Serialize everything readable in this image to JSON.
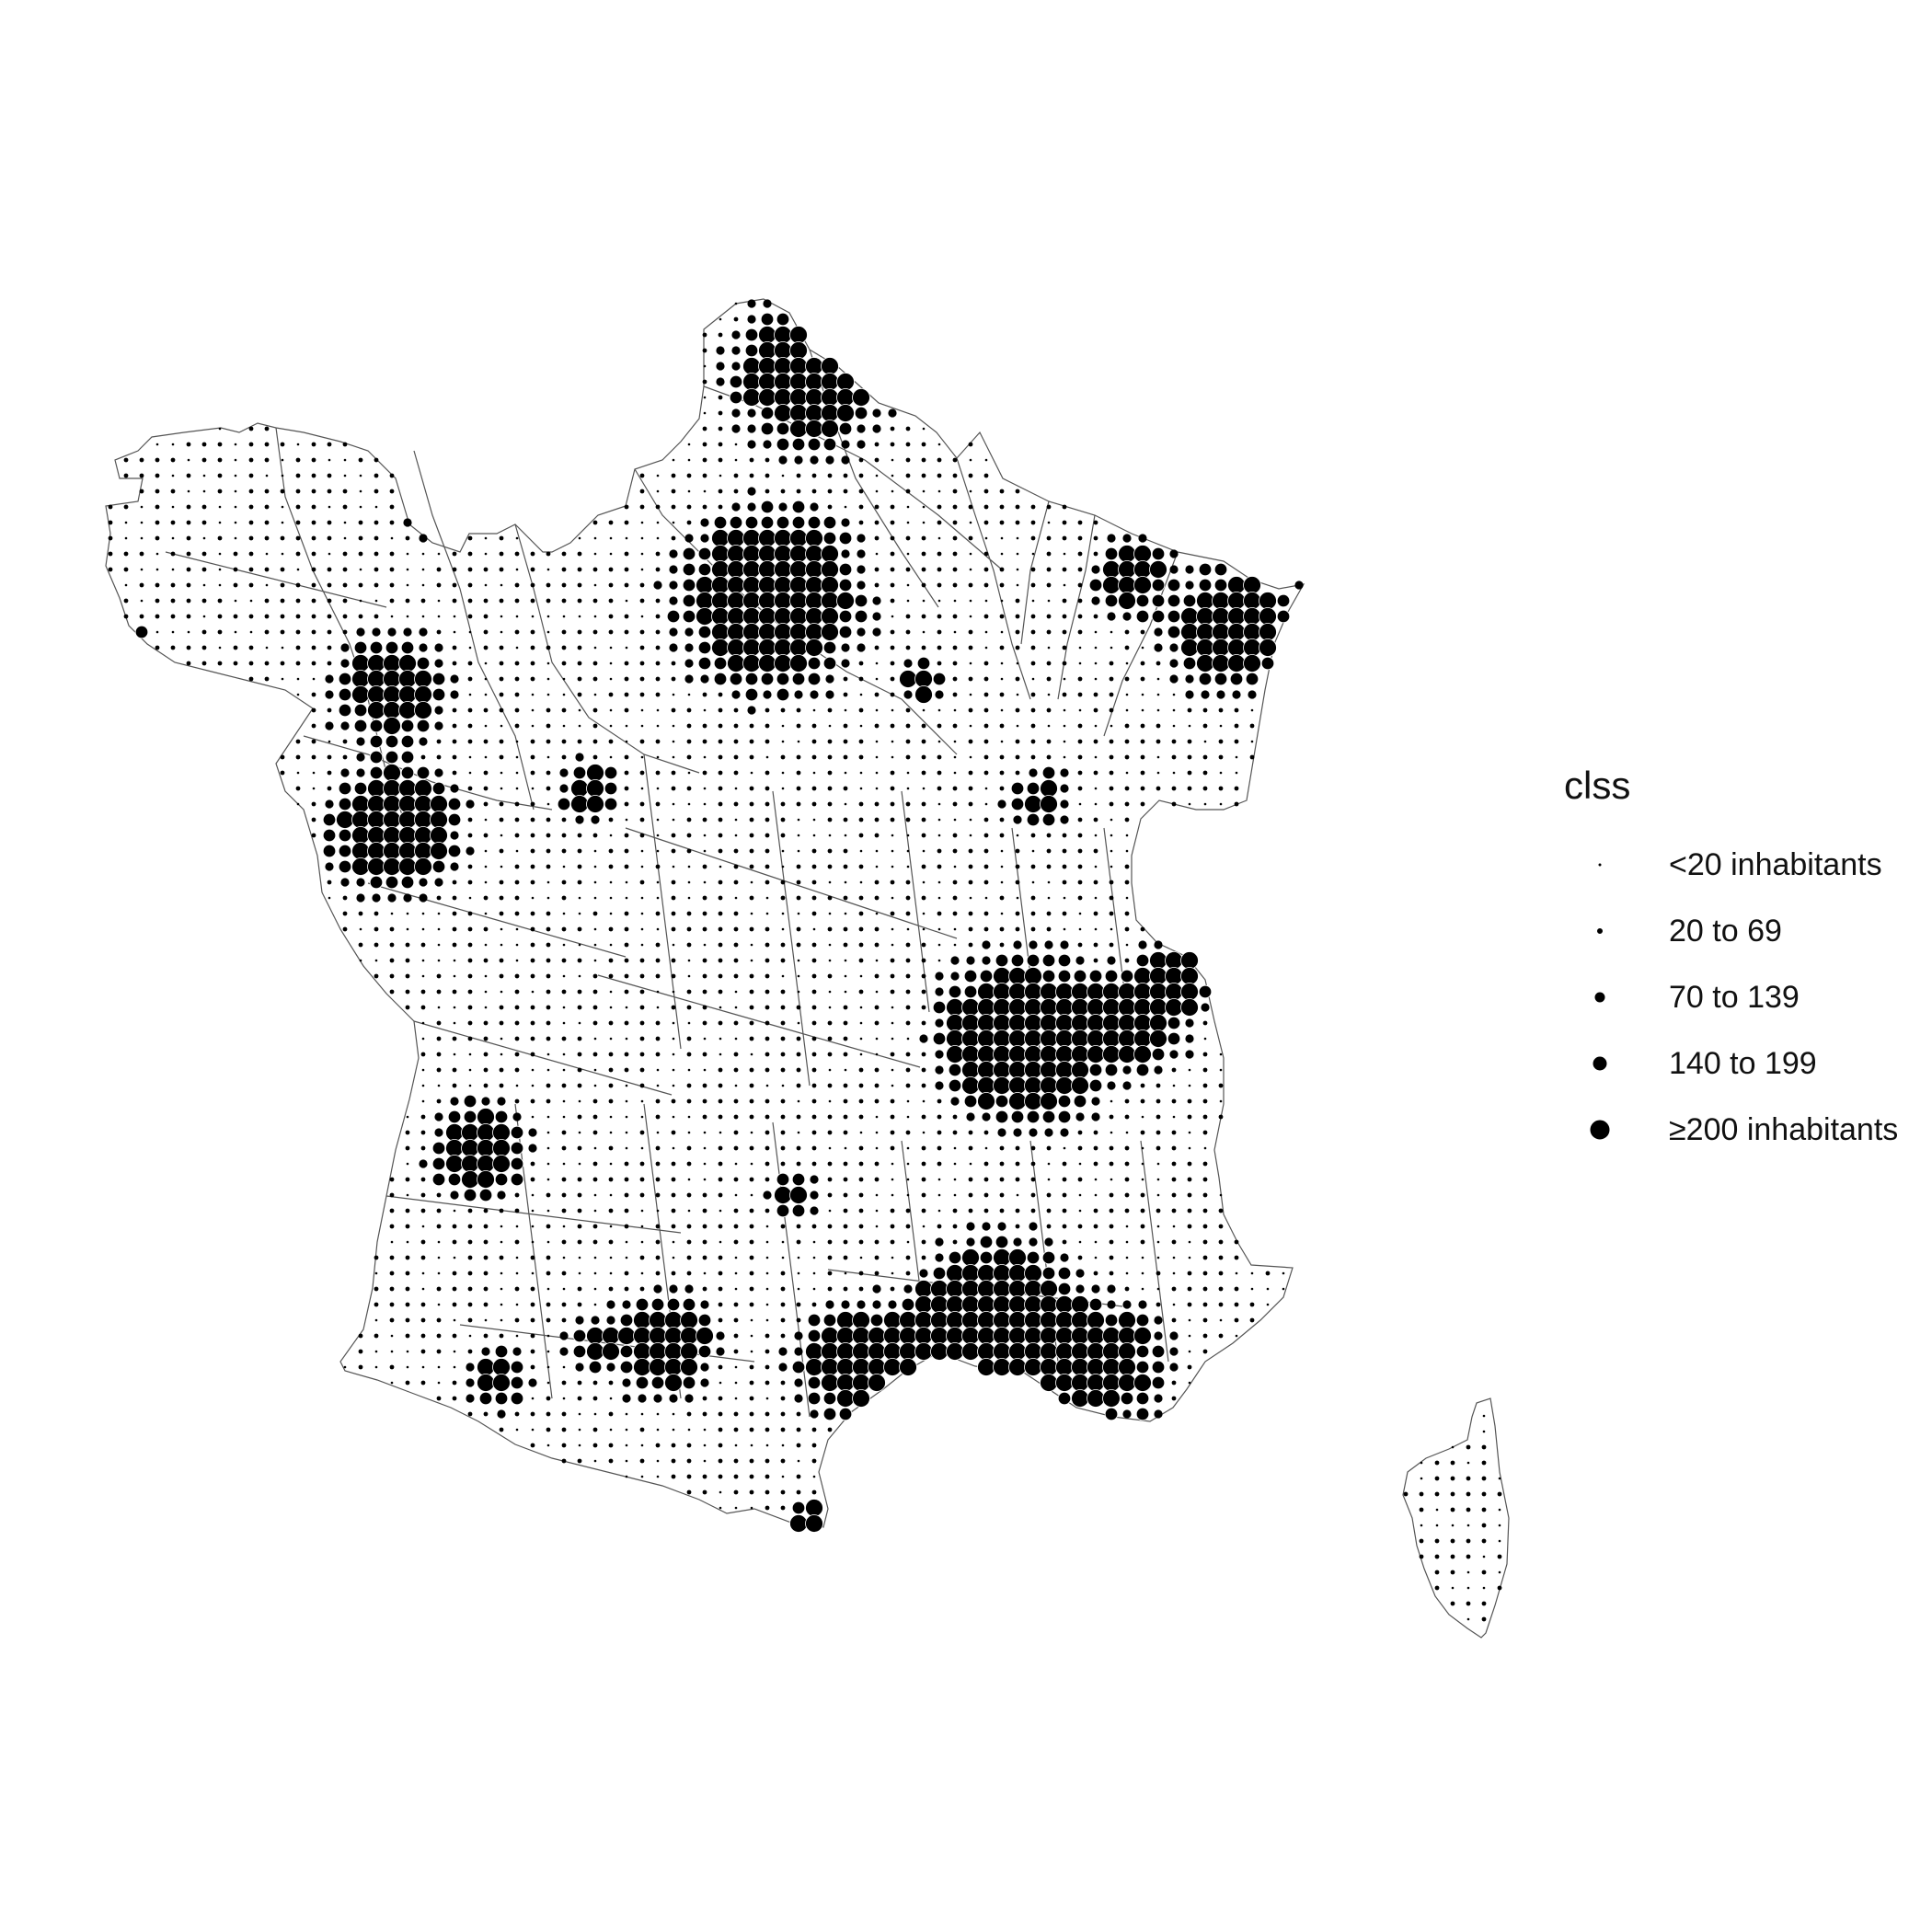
{
  "legend": {
    "title": "clss",
    "items": [
      {
        "label": "<20 inhabitants",
        "cls": 0
      },
      {
        "label": "20 to 69",
        "cls": 1
      },
      {
        "label": "70 to 139",
        "cls": 2
      },
      {
        "label": "140 to 199",
        "cls": 3
      },
      {
        "label": "≥200 inhabitants",
        "cls": 4
      }
    ]
  },
  "colors": {
    "dot": "#000000",
    "dot_outline": "#ffffff",
    "border": "#555555",
    "background": "#ffffff"
  },
  "icons": {
    "legend_key": "filled-circle"
  }
}
